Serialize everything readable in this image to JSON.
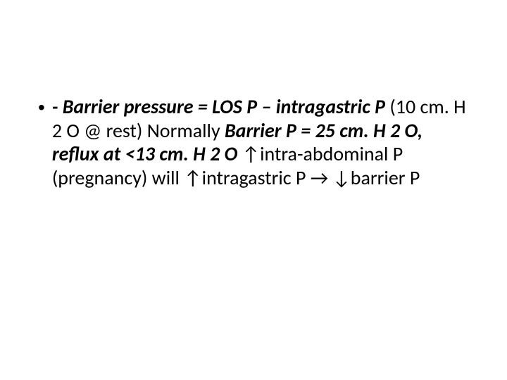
{
  "slide": {
    "background": "#ffffff",
    "text_color": "#000000",
    "font_family": "Calibri",
    "bullet": {
      "marker": "•",
      "segments": {
        "s1": "- Barrier pressure = LOS P – intragastric P ",
        "s2": "(10 cm. H 2 O @ rest) Normally ",
        "s3": "Barrier P = 25 cm. H 2 O, reflux at <13 cm. H 2 O  ",
        "s4": "↑intra-abdominal P (pregnancy) will ↑intragastric P → ↓barrier P"
      }
    },
    "fontsize_pt": 28,
    "line_height": 1.2
  }
}
